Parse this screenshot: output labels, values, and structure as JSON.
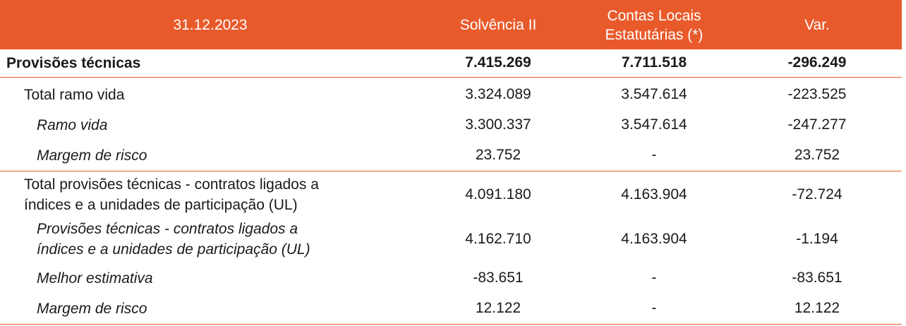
{
  "header": {
    "date": "31.12.2023",
    "col_solvencia": "Solvência II",
    "col_contas_line1": "Contas Locais",
    "col_contas_line2": "Estatutárias (*)",
    "col_var": "Var."
  },
  "rows": [
    {
      "label": "Provisões técnicas",
      "solvencia": "7.415.269",
      "contas": "7.711.518",
      "var": "-296.249"
    },
    {
      "label": "Total ramo vida",
      "solvencia": "3.324.089",
      "contas": "3.547.614",
      "var": "-223.525"
    },
    {
      "label": "Ramo vida",
      "solvencia": "3.300.337",
      "contas": "3.547.614",
      "var": "-247.277"
    },
    {
      "label": "Margem de risco",
      "solvencia": "23.752",
      "contas": "-",
      "var": "23.752"
    },
    {
      "label_line1": "Total provisões técnicas - contratos ligados a",
      "label_line2": "índices e a unidades de participação (UL)",
      "solvencia": "4.091.180",
      "contas": "4.163.904",
      "var": "-72.724"
    },
    {
      "label_line1": "Provisões técnicas - contratos ligados a",
      "label_line2": "índices e a unidades de participação (UL)",
      "solvencia": "4.162.710",
      "contas": "4.163.904",
      "var": "-1.194"
    },
    {
      "label": "Melhor estimativa",
      "solvencia": "-83.651",
      "contas": "-",
      "var": "-83.651"
    },
    {
      "label": "Margem de risco",
      "solvencia": "12.122",
      "contas": "-",
      "var": "12.122"
    }
  ],
  "colors": {
    "header_bg": "#e95a2b",
    "header_text": "#ffffff",
    "separator": "#e95a2b"
  }
}
